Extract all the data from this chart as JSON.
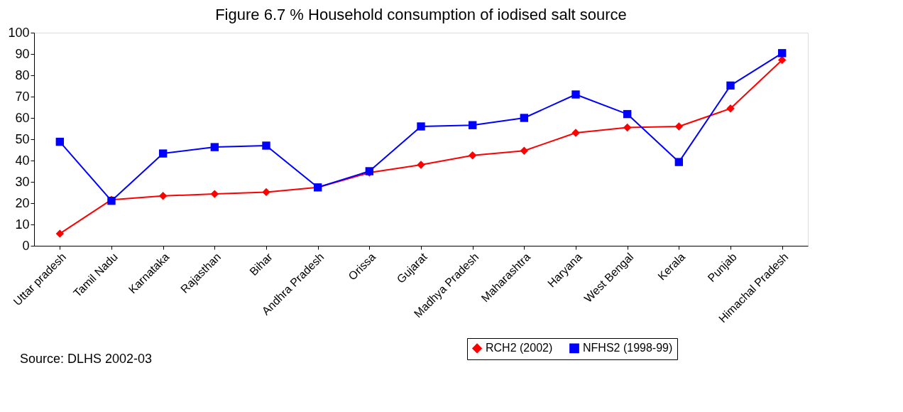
{
  "chart_data": {
    "type": "line",
    "title": "Figure 6.7 %  Household consumption of iodised salt source",
    "categories": [
      "Uttar pradesh",
      "Tamil Nadu",
      "Karnataka",
      "Rajasthan",
      "Bihar",
      "Andhra Pradesh",
      "Orissa",
      "Gujarat",
      "Madhya Pradesh",
      "Maharashtra",
      "Haryana",
      "West Bengal",
      "Kerala",
      "Punjab",
      "Himachal Pradesh"
    ],
    "series": [
      {
        "name": "RCH2 (2002)",
        "color": "#ff0000",
        "marker": "diamond",
        "values": [
          5.7,
          21.6,
          23.4,
          24.3,
          25.2,
          27.4,
          34.3,
          38,
          42.4,
          44.6,
          53,
          55.5,
          56,
          64.4,
          87.2
        ]
      },
      {
        "name": "NFHS2 (1998-99)",
        "color": "#0000ff",
        "marker": "square",
        "values": [
          48.8,
          21.1,
          43.3,
          46.3,
          47,
          27.4,
          35,
          56,
          56.6,
          60,
          71,
          61.8,
          39.3,
          75.2,
          90.4
        ]
      }
    ],
    "ylim": [
      0,
      100
    ],
    "yticks": [
      0,
      10,
      20,
      30,
      40,
      50,
      60,
      70,
      80,
      90,
      100
    ],
    "grid": false,
    "legend": "bottom right",
    "line_style": "solid",
    "annotations": [
      "Source: DLHS 2002-03"
    ]
  }
}
